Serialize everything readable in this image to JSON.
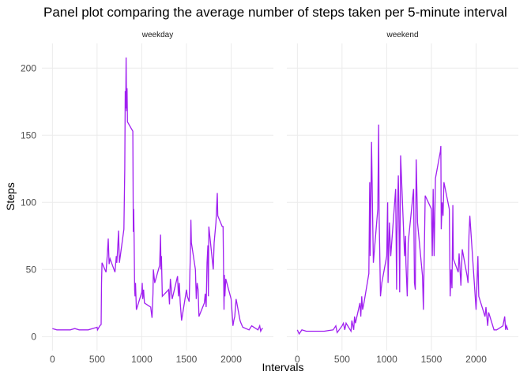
{
  "chart_data": {
    "type": "line",
    "title": "Panel plot comparing the average number of steps taken per 5-minute interval",
    "xlabel": "Intervals",
    "ylabel": "Steps",
    "xlim": [
      -117.75,
      2472.75
    ],
    "xticks": [
      0,
      500,
      1000,
      1500,
      2000
    ],
    "ylim": [
      -10.4,
      218.4
    ],
    "yticks": [
      0,
      50,
      100,
      150,
      200
    ],
    "grid": true,
    "series": [
      {
        "name": "weekday",
        "color": "#a020f0",
        "x": [
          0,
          50,
          100,
          150,
          200,
          250,
          300,
          350,
          400,
          450,
          500,
          505,
          530,
          545,
          550,
          555,
          600,
          615,
          625,
          635,
          645,
          700,
          715,
          720,
          730,
          740,
          750,
          800,
          810,
          815,
          820,
          825,
          830,
          835,
          840,
          900,
          905,
          910,
          915,
          920,
          925,
          930,
          940,
          1000,
          1005,
          1010,
          1020,
          1030,
          1100,
          1115,
          1125,
          1130,
          1145,
          1200,
          1210,
          1215,
          1220,
          1230,
          1300,
          1310,
          1320,
          1340,
          1400,
          1410,
          1420,
          1430,
          1445,
          1500,
          1510,
          1530,
          1545,
          1550,
          1555,
          1600,
          1610,
          1620,
          1630,
          1640,
          1700,
          1710,
          1720,
          1730,
          1740,
          1745,
          1750,
          1800,
          1810,
          1830,
          1845,
          1850,
          1900,
          1910,
          1920,
          1925,
          1930,
          1940,
          2000,
          2010,
          2020,
          2030,
          2040,
          2055,
          2100,
          2110,
          2130,
          2200,
          2230,
          2300,
          2320,
          2330,
          2345,
          2355
        ],
        "values": [
          6,
          5,
          5,
          5,
          5,
          6,
          5,
          5,
          5,
          6,
          7,
          5,
          8,
          9,
          40,
          55,
          48,
          62,
          73,
          54,
          58,
          48,
          60,
          55,
          65,
          79,
          55,
          80,
          125,
          183,
          170,
          208,
          168,
          185,
          160,
          153,
          78,
          95,
          70,
          35,
          30,
          40,
          20,
          33,
          40,
          28,
          35,
          25,
          22,
          14,
          32,
          50,
          40,
          53,
          76,
          50,
          60,
          30,
          35,
          24,
          43,
          28,
          45,
          30,
          40,
          25,
          12,
          35,
          30,
          26,
          66,
          87,
          70,
          50,
          28,
          40,
          35,
          15,
          25,
          32,
          22,
          55,
          68,
          30,
          82,
          50,
          70,
          85,
          107,
          90,
          82,
          82,
          20,
          46,
          30,
          43,
          28,
          18,
          8,
          12,
          15,
          28,
          12,
          10,
          7,
          5,
          8,
          5,
          8,
          4,
          6,
          6
        ]
      },
      {
        "name": "weekend",
        "color": "#a020f0",
        "x": [
          0,
          20,
          50,
          100,
          200,
          300,
          400,
          430,
          445,
          500,
          515,
          530,
          545,
          600,
          610,
          630,
          640,
          650,
          700,
          710,
          720,
          730,
          745,
          800,
          810,
          815,
          830,
          840,
          850,
          900,
          910,
          915,
          920,
          930,
          945,
          1000,
          1010,
          1015,
          1030,
          1045,
          1100,
          1110,
          1115,
          1130,
          1135,
          1145,
          1155,
          1200,
          1210,
          1215,
          1230,
          1240,
          1300,
          1310,
          1320,
          1330,
          1340,
          1345,
          1400,
          1410,
          1420,
          1430,
          1500,
          1510,
          1520,
          1530,
          1545,
          1600,
          1605,
          1610,
          1620,
          1630,
          1640,
          1700,
          1710,
          1720,
          1730,
          1740,
          1745,
          1800,
          1810,
          1830,
          1845,
          1900,
          1910,
          1920,
          1930,
          2000,
          2010,
          2020,
          2030,
          2100,
          2110,
          2120,
          2130,
          2140,
          2200,
          2230,
          2300,
          2320,
          2330,
          2340,
          2355
        ],
        "values": [
          5,
          2,
          5,
          4,
          4,
          4,
          5,
          8,
          3,
          8,
          10,
          5,
          10,
          4,
          12,
          5,
          15,
          10,
          25,
          15,
          30,
          20,
          25,
          47,
          115,
          60,
          145,
          100,
          55,
          95,
          158,
          90,
          70,
          30,
          40,
          60,
          100,
          40,
          85,
          60,
          110,
          35,
          75,
          120,
          100,
          33,
          135,
          60,
          75,
          55,
          30,
          70,
          110,
          40,
          35,
          132,
          100,
          85,
          45,
          20,
          60,
          105,
          95,
          60,
          110,
          60,
          118,
          138,
          142,
          80,
          100,
          90,
          115,
          95,
          30,
          50,
          36,
          98,
          58,
          48,
          62,
          38,
          65,
          45,
          40,
          75,
          90,
          20,
          40,
          60,
          30,
          15,
          22,
          15,
          8,
          18,
          5,
          5,
          8,
          15,
          5,
          8,
          5
        ]
      }
    ]
  }
}
